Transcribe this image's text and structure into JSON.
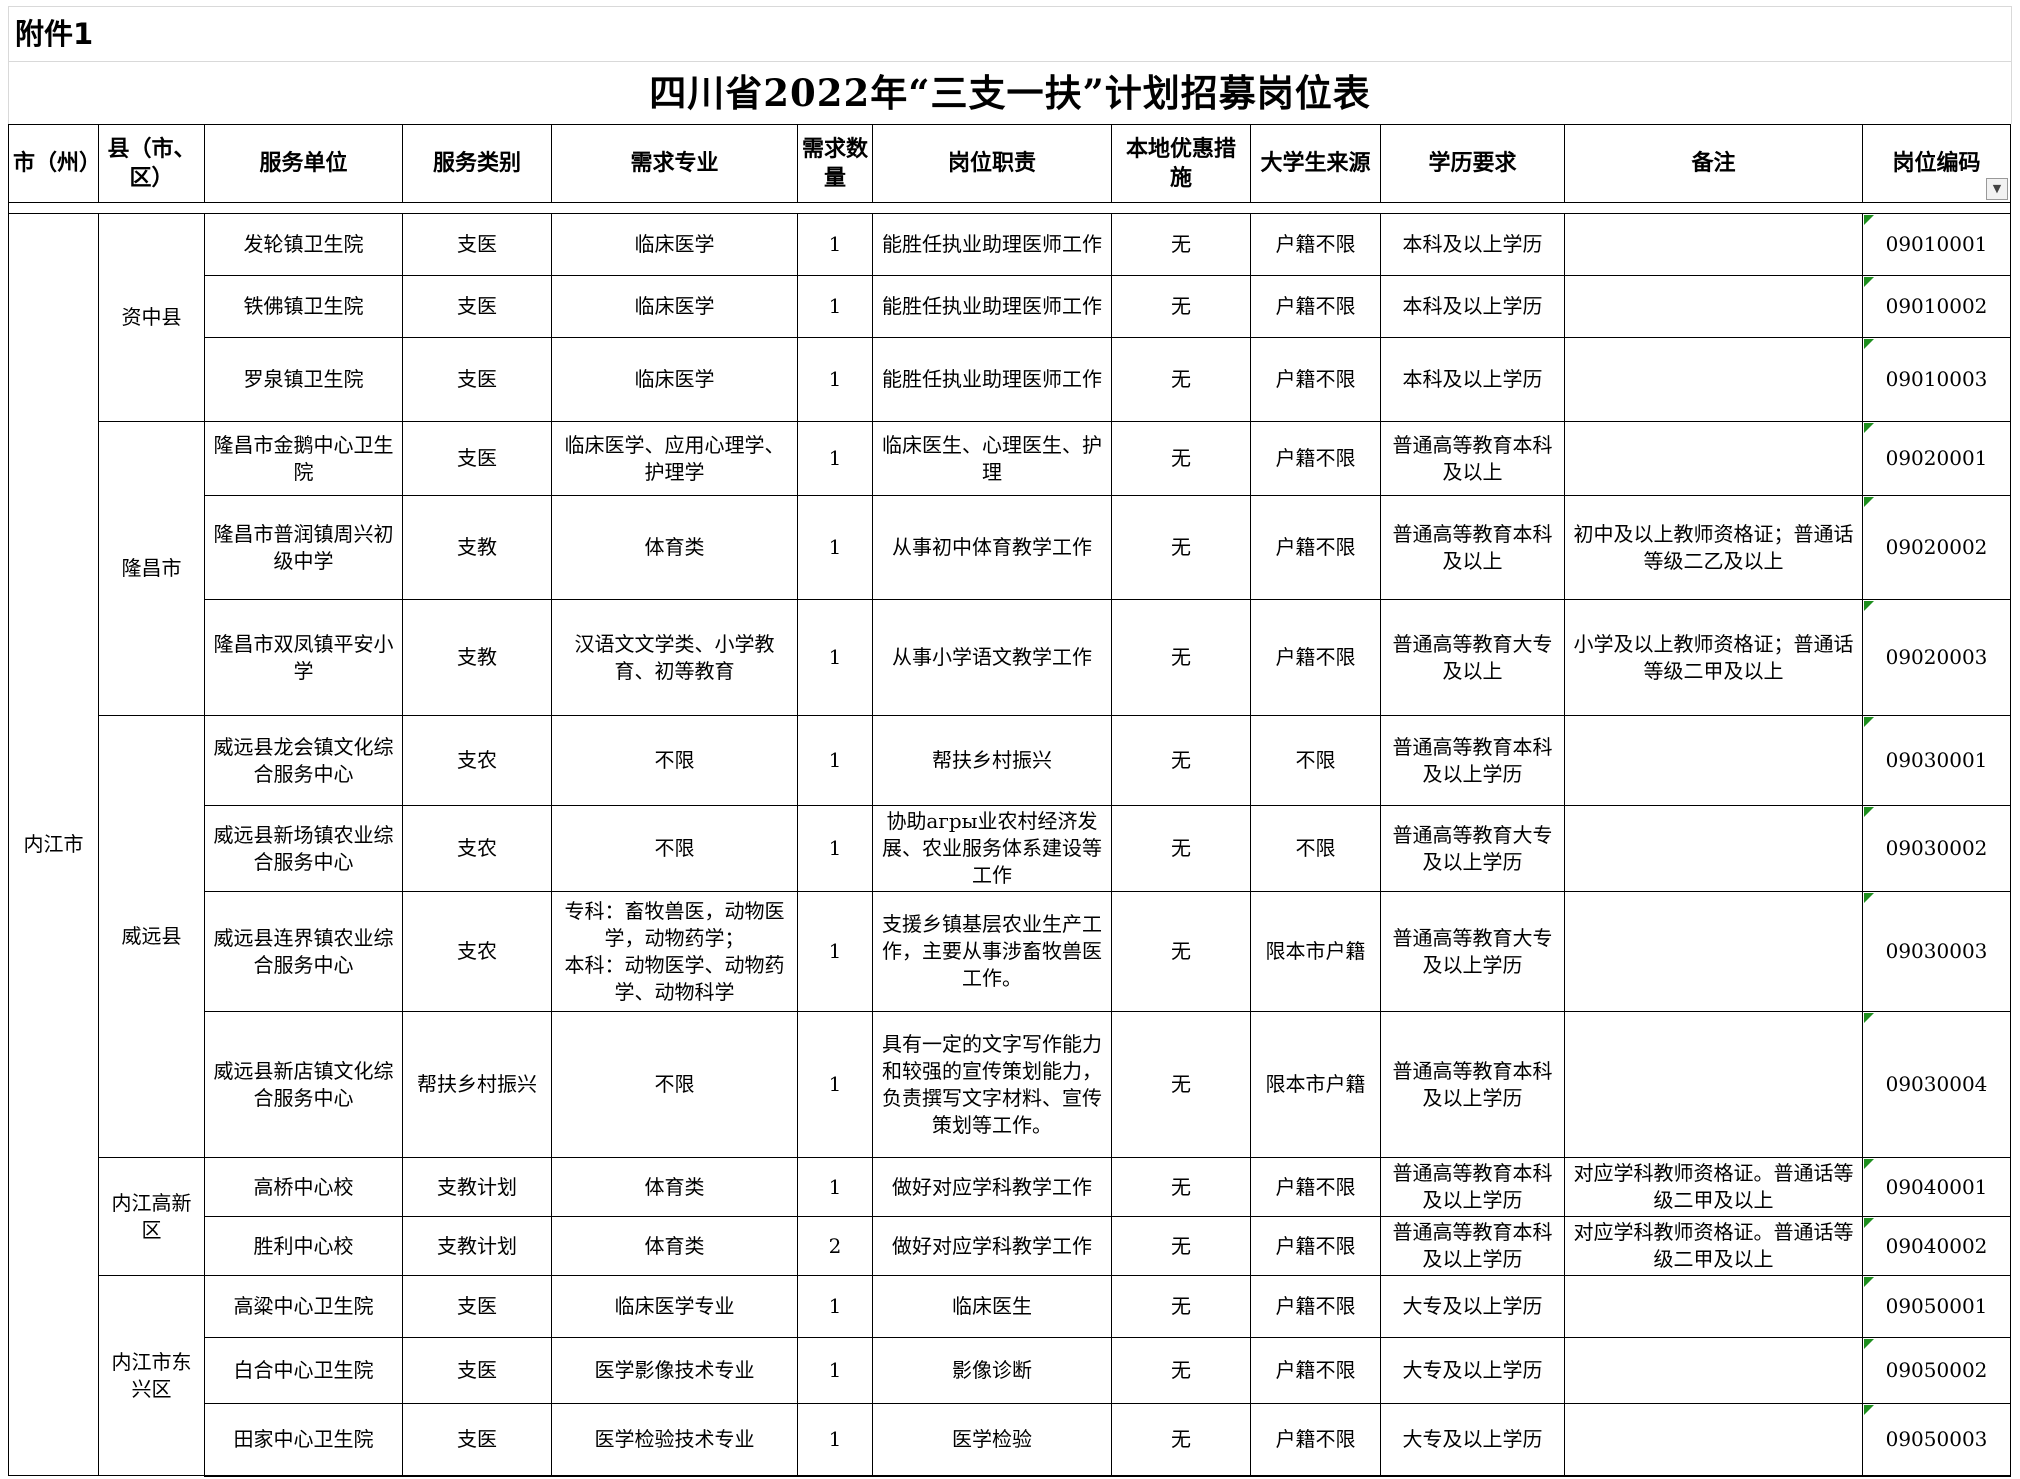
{
  "attachment_label": "附件1",
  "title": "四川省2022年“三支一扶”计划招募岗位表",
  "colors": {
    "flag_green": "#1e8f1e",
    "table_border": "#000000",
    "top_gridline": "#d9d9d9"
  },
  "table": {
    "columns": [
      "市（州）",
      "县（市、区）",
      "服务单位",
      "服务类别",
      "需求专业",
      "需求数量",
      "岗位职责",
      "本地优惠措施",
      "大学生来源",
      "学历要求",
      "备注",
      "岗位编码"
    ],
    "filter_icon": "▼",
    "city": "内江市",
    "county_groups": [
      {
        "name": "资中县",
        "rows": 3
      },
      {
        "name": "隆昌市",
        "rows": 3
      },
      {
        "name": "威远县",
        "rows": 4
      },
      {
        "name": "内江高新区",
        "rows": 2
      },
      {
        "name": "内江市东兴区",
        "rows": 3
      }
    ],
    "rows": [
      {
        "unit": "发轮镇卫生院",
        "category": "支医",
        "major": "临床医学",
        "count": "1",
        "duty": "能胜任执业助理医师工作",
        "local": "无",
        "source": "户籍不限",
        "edu": "本科及以上学历",
        "note": "",
        "code": "09010001"
      },
      {
        "unit": "铁佛镇卫生院",
        "category": "支医",
        "major": "临床医学",
        "count": "1",
        "duty": "能胜任执业助理医师工作",
        "local": "无",
        "source": "户籍不限",
        "edu": "本科及以上学历",
        "note": "",
        "code": "09010002"
      },
      {
        "unit": "罗泉镇卫生院",
        "category": "支医",
        "major": "临床医学",
        "count": "1",
        "duty": "能胜任执业助理医师工作",
        "local": "无",
        "source": "户籍不限",
        "edu": "本科及以上学历",
        "note": "",
        "code": "09010003"
      },
      {
        "unit": "隆昌市金鹅中心卫生院",
        "category": "支医",
        "major": "临床医学、应用心理学、护理学",
        "count": "1",
        "duty": "临床医生、心理医生、护理",
        "local": "无",
        "source": "户籍不限",
        "edu": "普通高等教育本科及以上",
        "note": "",
        "code": "09020001"
      },
      {
        "unit": "隆昌市普润镇周兴初级中学",
        "category": "支教",
        "major": "体育类",
        "count": "1",
        "duty": "从事初中体育教学工作",
        "local": "无",
        "source": "户籍不限",
        "edu": "普通高等教育本科及以上",
        "note": "初中及以上教师资格证；普通话等级二乙及以上",
        "code": "09020002"
      },
      {
        "unit": "隆昌市双凤镇平安小学",
        "category": "支教",
        "major": "汉语文文学类、小学教育、初等教育",
        "count": "1",
        "duty": "从事小学语文教学工作",
        "local": "无",
        "source": "户籍不限",
        "edu": "普通高等教育大专及以上",
        "note": "小学及以上教师资格证；普通话等级二甲及以上",
        "code": "09020003"
      },
      {
        "unit": "威远县龙会镇文化综合服务中心",
        "category": "支农",
        "major": "不限",
        "count": "1",
        "duty": "帮扶乡村振兴",
        "local": "无",
        "source": "不限",
        "edu": "普通高等教育本科及以上学历",
        "note": "",
        "code": "09030001"
      },
      {
        "unit": "威远县新场镇农业综合服务中心",
        "category": "支农",
        "major": "不限",
        "count": "1",
        "duty": "协助агры业农村经济发展、农业服务体系建设等工作",
        "local": "无",
        "source": "不限",
        "edu": "普通高等教育大专及以上学历",
        "note": "",
        "code": "09030002"
      },
      {
        "unit": "威远县连界镇农业综合服务中心",
        "category": "支农",
        "major": "专科：畜牧兽医，动物医学，动物药学；\n本科：动物医学、动物药学、动物科学",
        "count": "1",
        "duty": "支援乡镇基层农业生产工作，主要从事涉畜牧兽医工作。",
        "local": "无",
        "source": "限本市户籍",
        "edu": "普通高等教育大专及以上学历",
        "note": "",
        "code": "09030003"
      },
      {
        "unit": "威远县新店镇文化综合服务中心",
        "category": "帮扶乡村振兴",
        "major": "不限",
        "count": "1",
        "duty": "具有一定的文字写作能力和较强的宣传策划能力，负责撰写文字材料、宣传策划等工作。",
        "local": "无",
        "source": "限本市户籍",
        "edu": "普通高等教育本科及以上学历",
        "note": "",
        "code": "09030004"
      },
      {
        "unit": "高桥中心校",
        "category": "支教计划",
        "major": "体育类",
        "count": "1",
        "duty": "做好对应学科教学工作",
        "local": "无",
        "source": "户籍不限",
        "edu": "普通高等教育本科及以上学历",
        "note": "对应学科教师资格证。普通话等级二甲及以上",
        "code": "09040001"
      },
      {
        "unit": "胜利中心校",
        "category": "支教计划",
        "major": "体育类",
        "count": "2",
        "duty": "做好对应学科教学工作",
        "local": "无",
        "source": "户籍不限",
        "edu": "普通高等教育本科及以上学历",
        "note": "对应学科教师资格证。普通话等级二甲及以上",
        "code": "09040002"
      },
      {
        "unit": "高粱中心卫生院",
        "category": "支医",
        "major": "临床医学专业",
        "count": "1",
        "duty": "临床医生",
        "local": "无",
        "source": "户籍不限",
        "edu": "大专及以上学历",
        "note": "",
        "code": "09050001"
      },
      {
        "unit": "白合中心卫生院",
        "category": "支医",
        "major": "医学影像技术专业",
        "count": "1",
        "duty": "影像诊断",
        "local": "无",
        "source": "户籍不限",
        "edu": "大专及以上学历",
        "note": "",
        "code": "09050002"
      },
      {
        "unit": "田家中心卫生院",
        "category": "支医",
        "major": "医学检验技术专业",
        "count": "1",
        "duty": "医学检验",
        "local": "无",
        "source": "户籍不限",
        "edu": "大专及以上学历",
        "note": "",
        "code": "09050003"
      }
    ]
  }
}
